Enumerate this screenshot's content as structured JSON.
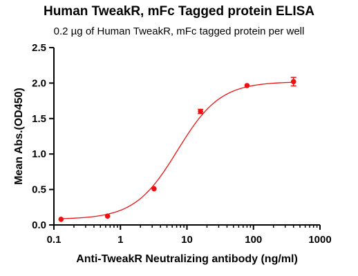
{
  "chart_data": {
    "type": "scatter",
    "title": "Human TweakR,  mFc Tagged protein ELISA",
    "subtitle": "0.2 µg of Human TweakR, mFc tagged protein per well",
    "xlabel": "Anti-TweakR Neutralizing antibody (ng/ml)",
    "ylabel": "Mean Abs.(OD450)",
    "x_scale": "log",
    "xlim": [
      0.1,
      1000
    ],
    "ylim": [
      0,
      2.5
    ],
    "x_ticks": [
      0.1,
      1,
      10,
      100,
      1000
    ],
    "x_tick_labels": [
      "0.1",
      "1",
      "10",
      "100",
      "1000"
    ],
    "y_ticks": [
      0,
      0.5,
      1.0,
      1.5,
      2.0,
      2.5
    ],
    "y_tick_labels": [
      "0.0",
      "0.5",
      "1.0",
      "1.5",
      "2.0",
      "2.5"
    ],
    "grid": false,
    "color": "#ee1111",
    "series": [
      {
        "x": [
          0.128,
          0.64,
          3.2,
          16,
          80,
          400
        ],
        "y": [
          0.08,
          0.125,
          0.51,
          1.6,
          1.965,
          2.02
        ],
        "y_error": [
          0,
          0,
          0,
          0.03,
          0,
          0.06
        ]
      }
    ],
    "fit": {
      "bottom": 0.08,
      "top": 2.02,
      "ec50": 7.2,
      "hill": 1.35
    }
  }
}
